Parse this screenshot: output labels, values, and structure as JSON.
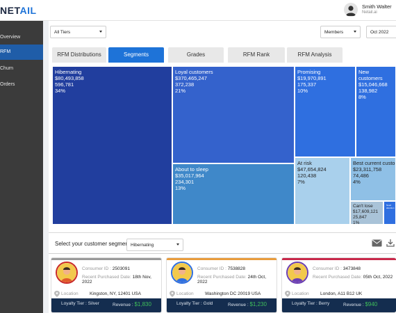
{
  "app": {
    "logo_main": "NET",
    "logo_accent": "AIL"
  },
  "user": {
    "name": "Smith Walter",
    "org": "Netail.ai"
  },
  "sidebar": {
    "items": [
      {
        "label": "Overview",
        "active": false
      },
      {
        "label": "RFM",
        "active": true
      },
      {
        "label": "Churn",
        "active": false
      },
      {
        "label": "Orders",
        "active": false
      }
    ]
  },
  "filters": {
    "tier": "All Tiers",
    "metric": "Members",
    "period": "Oct 2022"
  },
  "tabs": [
    {
      "label": "RFM Distributions",
      "active": false
    },
    {
      "label": "Segments",
      "active": true
    },
    {
      "label": "Grades",
      "active": false
    },
    {
      "label": "RFM Rank",
      "active": false
    },
    {
      "label": "RFM Analysis",
      "active": false
    }
  ],
  "treemap": {
    "colors": {
      "dark_blue": "#213e9e",
      "blue": "#3462cc",
      "mid_blue": "#3f88c9",
      "bright_blue": "#2f6fe0",
      "light_blue": "#8fc0e6",
      "pale_blue": "#a9d0ec"
    },
    "tiles": [
      {
        "name": "Hibernating",
        "revenue": "$80,493,858",
        "count": "596,781",
        "share": "34%"
      },
      {
        "name": "Loyal customers",
        "revenue": "$370,465,247",
        "count": "372,238",
        "share": "21%"
      },
      {
        "name": "Promising",
        "revenue": "$19,970,891",
        "count": "175,337",
        "share": "10%"
      },
      {
        "name": "New customers",
        "revenue": "$15,046,668",
        "count": "138,982",
        "share": "8%"
      },
      {
        "name": "About to sleep",
        "revenue": "$35,017,964",
        "count": "234,301",
        "share": "13%"
      },
      {
        "name": "At risk",
        "revenue": "$47,654,824",
        "count": "120,438",
        "share": "7%"
      },
      {
        "name": "Best current customers",
        "revenue": "$23,311,758",
        "count": "74,486",
        "share": "4%"
      },
      {
        "name": "Can't lose",
        "revenue": "$17,609,121",
        "count": "25,847",
        "share": "1%"
      },
      {
        "name": "Need attention",
        "revenue": "",
        "count": "",
        "share": ""
      }
    ]
  },
  "segment_picker": {
    "label": "Select your customer segment",
    "value": "Hibernating"
  },
  "cards": [
    {
      "id_label": "Consumer ID :",
      "id": "2503091",
      "date_label": "Recent Purchased Date:",
      "date": "18th Nov, 2022",
      "location_label": "Location",
      "location": "Kingston, NY, 12401 USA",
      "tier_label": "Loyalty Tier :",
      "tier": "Silver",
      "revenue_label": "Revenue :",
      "revenue": "$1,830",
      "accent": "#9a9a9a"
    },
    {
      "id_label": "Consumer ID :",
      "id": "7538828",
      "date_label": "Recent Purchased Date:",
      "date": "24th Oct, 2022",
      "location_label": "Location",
      "location": "Washington DC 20019 USA",
      "tier_label": "Loyalty Tier :",
      "tier": "Gold",
      "revenue_label": "Revenue :",
      "revenue": "$1,230",
      "accent": "#e89c3c"
    },
    {
      "id_label": "Consumer ID :",
      "id": "3473848",
      "date_label": "Recent Purchased Date:",
      "date": "05th Oct, 2022",
      "location_label": "Location",
      "location": "London, A11 B12 UK",
      "tier_label": "Loyalty Tier :",
      "tier": "Berry",
      "revenue_label": "Revenue :",
      "revenue": "$940",
      "accent": "#c8284a"
    }
  ]
}
